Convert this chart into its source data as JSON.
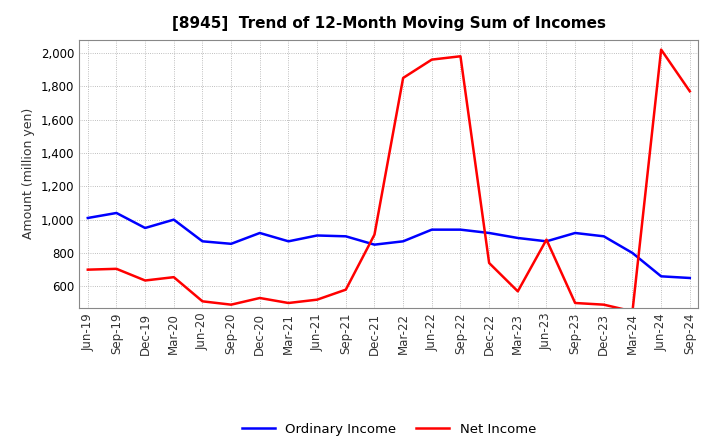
{
  "title": "[8945]  Trend of 12-Month Moving Sum of Incomes",
  "ylabel": "Amount (million yen)",
  "background_color": "#ffffff",
  "grid_color": "#aaaaaa",
  "ordinary_income_color": "#0000ff",
  "net_income_color": "#ff0000",
  "line_width": 1.8,
  "labels": [
    "Jun-19",
    "Sep-19",
    "Dec-19",
    "Mar-20",
    "Jun-20",
    "Sep-20",
    "Dec-20",
    "Mar-21",
    "Jun-21",
    "Sep-21",
    "Dec-21",
    "Mar-22",
    "Jun-22",
    "Sep-22",
    "Dec-22",
    "Mar-23",
    "Jun-23",
    "Sep-23",
    "Dec-23",
    "Mar-24",
    "Jun-24",
    "Sep-24"
  ],
  "ordinary_income": [
    1010,
    1040,
    950,
    1000,
    870,
    855,
    920,
    870,
    905,
    900,
    850,
    870,
    940,
    940,
    920,
    890,
    870,
    920,
    900,
    800,
    660,
    650
  ],
  "net_income": [
    700,
    705,
    635,
    655,
    510,
    490,
    530,
    500,
    520,
    580,
    910,
    1850,
    1960,
    1980,
    740,
    570,
    880,
    500,
    490,
    450,
    2020,
    1770
  ],
  "ylim": [
    470,
    2080
  ],
  "yticks": [
    600,
    800,
    1000,
    1200,
    1400,
    1600,
    1800,
    2000
  ],
  "legend_labels": [
    "Ordinary Income",
    "Net Income"
  ],
  "title_fontsize": 11,
  "axis_label_fontsize": 9,
  "tick_fontsize": 8.5
}
